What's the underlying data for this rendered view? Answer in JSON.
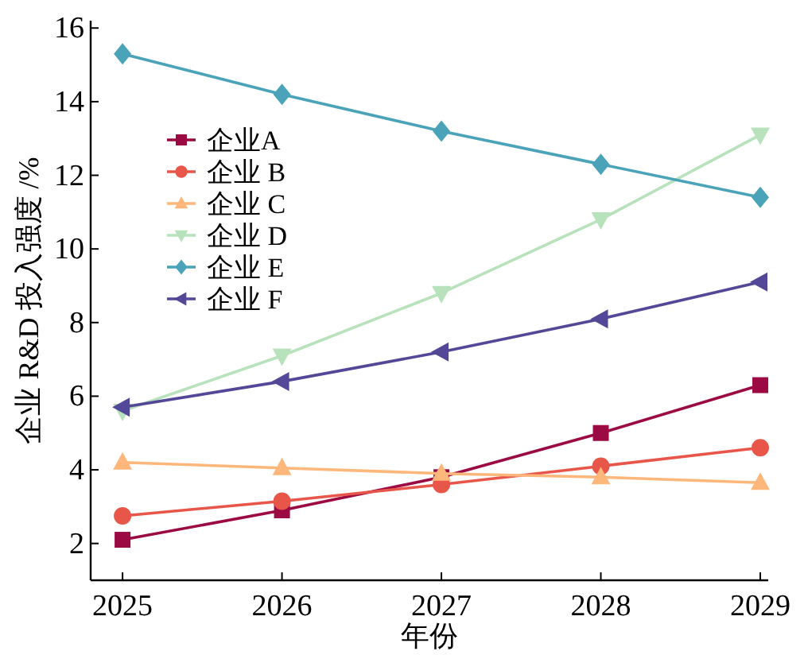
{
  "chart_data": {
    "type": "line",
    "xlabel": "年份",
    "ylabel": "企业 R&D 投入强度 /%",
    "x": [
      2025,
      2026,
      2027,
      2028,
      2029
    ],
    "xlim": [
      2024.8,
      2029.05
    ],
    "ylim": [
      1,
      16.2
    ],
    "xticks": [
      2025,
      2026,
      2027,
      2028,
      2029
    ],
    "yticks": [
      2,
      4,
      6,
      8,
      10,
      12,
      14,
      16
    ],
    "grid": false,
    "legend": "left",
    "line_style": "solid",
    "series": [
      {
        "name": "企业A",
        "color": "#9b0a42",
        "marker": "square",
        "values": [
          2.1,
          2.9,
          3.8,
          5.0,
          6.3
        ]
      },
      {
        "name": "企业 B",
        "color": "#e8564a",
        "marker": "circle",
        "values": [
          2.75,
          3.15,
          3.6,
          4.1,
          4.6
        ]
      },
      {
        "name": "企业 C",
        "color": "#fdb77a",
        "marker": "triangle",
        "values": [
          4.2,
          4.05,
          3.9,
          3.8,
          3.65
        ]
      },
      {
        "name": "企业 D",
        "color": "#b8e2bc",
        "marker": "triangle-down",
        "values": [
          5.6,
          7.1,
          8.8,
          10.8,
          13.1
        ]
      },
      {
        "name": "企业 E",
        "color": "#4aa3b8",
        "marker": "diamond",
        "values": [
          15.3,
          14.2,
          13.2,
          12.3,
          11.4
        ]
      },
      {
        "name": "企业 F",
        "color": "#534797",
        "marker": "triangle-left",
        "values": [
          5.7,
          6.4,
          7.2,
          8.1,
          9.1
        ]
      }
    ]
  }
}
